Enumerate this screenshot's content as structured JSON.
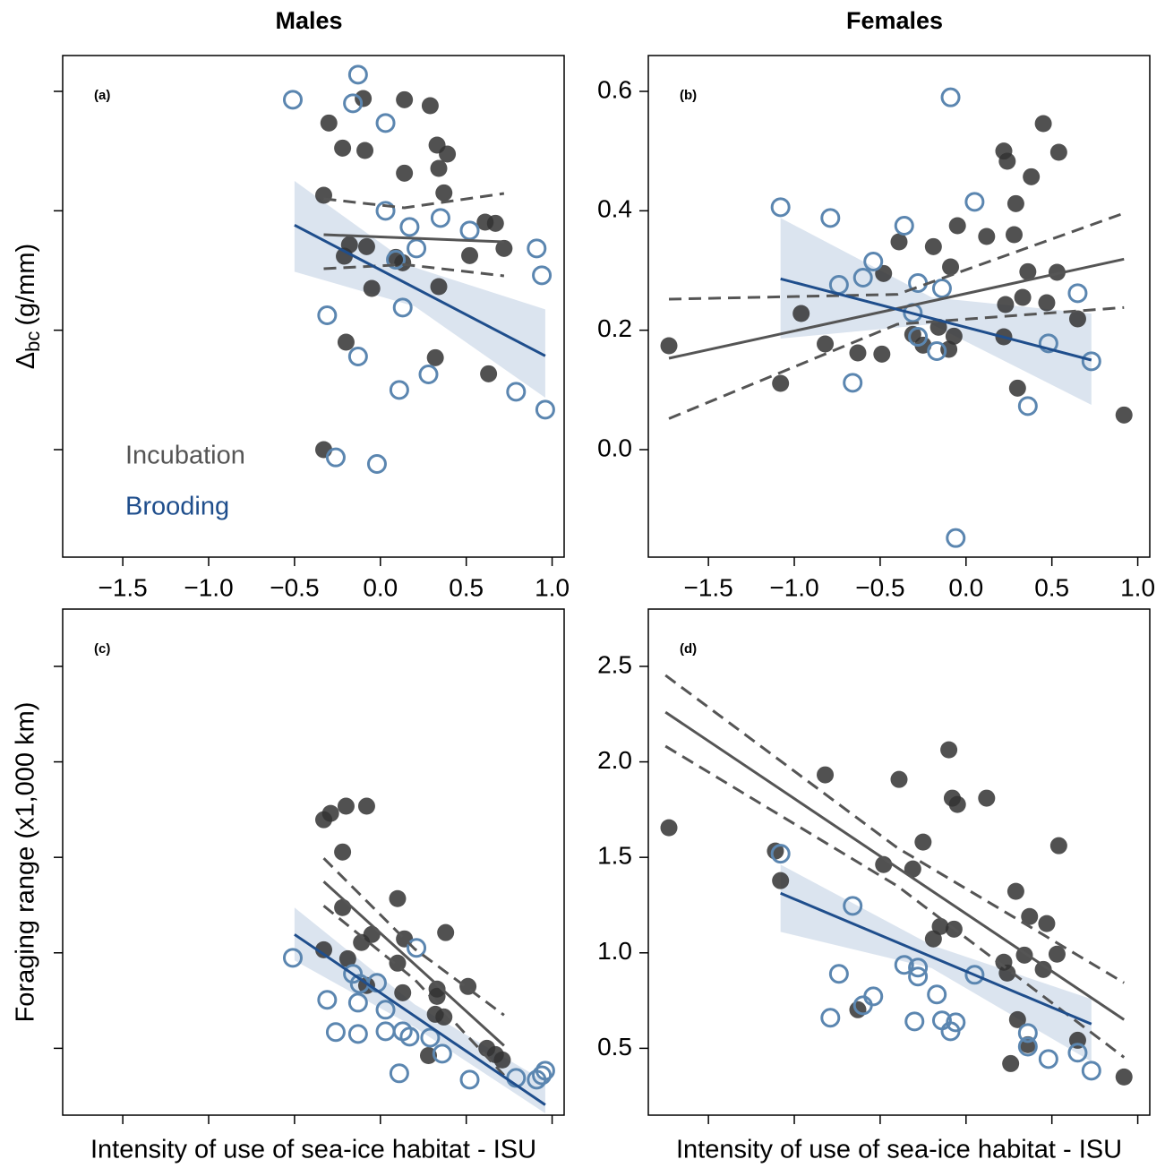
{
  "chart_data": [
    {
      "type": "scatter",
      "title": "Males",
      "panel_label": "(a)",
      "ylabel": {
        "symbol": "Δ",
        "subscript": "bc",
        "unit": "(g/mm)"
      },
      "xlim": [
        -1.85,
        1.07
      ],
      "ylim": [
        -0.18,
        0.66
      ],
      "xticks": [
        {
          "value": -1.5,
          "label": "−1.5"
        },
        {
          "value": -1,
          "label": "−1.0"
        },
        {
          "value": -0.5,
          "label": "−0.5"
        },
        {
          "value": 0,
          "label": "0.0"
        },
        0.5,
        {
          "value": 1,
          "label": "1.0"
        }
      ],
      "yticks": [
        0,
        0.2,
        0.4,
        0.6
      ],
      "xtick_labels": true,
      "ytick_labels": false,
      "legend": "lower left",
      "series": [
        {
          "name": "Incubation",
          "color": "#333333",
          "line_color": "#555555",
          "marker": "filled",
          "x": [
            -0.33,
            -0.3,
            -0.22,
            -0.1,
            -0.09,
            0.14,
            0.29,
            0.33,
            0.39,
            0.34,
            0.14,
            0.37,
            -0.18,
            -0.21,
            -0.08,
            0.09,
            0.13,
            -0.05,
            0.34,
            0.52,
            0.61,
            0.67,
            0.72,
            -0.2,
            0.32,
            0.63,
            -0.33
          ],
          "y": [
            0.426,
            0.547,
            0.505,
            0.588,
            0.501,
            0.586,
            0.576,
            0.51,
            0.495,
            0.471,
            0.463,
            0.43,
            0.343,
            0.324,
            0.34,
            0.322,
            0.313,
            0.27,
            0.273,
            0.325,
            0.381,
            0.379,
            0.337,
            0.18,
            0.154,
            0.127,
            0.0
          ],
          "fit": {
            "x": [
              -0.33,
              0.72
            ],
            "y": [
              0.36,
              0.348
            ]
          },
          "ci": {
            "style": "dashed",
            "x": [
              -0.33,
              0.14,
              0.72
            ],
            "upper": [
              0.42,
              0.405,
              0.429
            ],
            "lower": [
              0.303,
              0.31,
              0.291
            ]
          }
        },
        {
          "name": "Brooding",
          "color": "#5b86b0",
          "line_color": "#1f4e8c",
          "marker": "open",
          "x": [
            -0.51,
            -0.13,
            -0.16,
            0.03,
            0.03,
            0.17,
            0.21,
            0.35,
            0.52,
            0.91,
            0.94,
            0.09,
            0.13,
            -0.31,
            -0.13,
            0.11,
            0.28,
            0.79,
            0.96,
            -0.26,
            -0.02
          ],
          "y": [
            0.586,
            0.628,
            0.58,
            0.547,
            0.4,
            0.373,
            0.337,
            0.388,
            0.367,
            0.337,
            0.292,
            0.318,
            0.238,
            0.225,
            0.156,
            0.1,
            0.126,
            0.097,
            0.067,
            -0.013,
            -0.024
          ],
          "fit": {
            "x": [
              -0.5,
              0.96
            ],
            "y": [
              0.376,
              0.157
            ]
          },
          "ci": {
            "style": "band",
            "x": [
              -0.5,
              0.2,
              0.96
            ],
            "upper": [
              0.45,
              0.305,
              0.235
            ],
            "lower": [
              0.298,
              0.24,
              0.087
            ]
          }
        }
      ]
    },
    {
      "type": "scatter",
      "title": "Females",
      "panel_label": "(b)",
      "xlim": [
        -1.85,
        1.07
      ],
      "ylim": [
        -0.18,
        0.66
      ],
      "xticks": [
        {
          "value": -1.5,
          "label": "−1.5"
        },
        {
          "value": -1,
          "label": "−1.0"
        },
        {
          "value": -0.5,
          "label": "−0.5"
        },
        {
          "value": 0,
          "label": "0.0"
        },
        0.5,
        {
          "value": 1,
          "label": "1.0"
        }
      ],
      "yticks": [
        {
          "value": 0,
          "label": "0.0"
        },
        0.2,
        0.4,
        0.6
      ],
      "xtick_labels": true,
      "ytick_labels": true,
      "series": [
        {
          "color": "#333333",
          "line_color": "#555555",
          "marker": "filled",
          "x": [
            -1.73,
            -1.08,
            -0.96,
            -0.82,
            -0.63,
            -0.39,
            -0.48,
            -0.49,
            -0.31,
            -0.25,
            -0.19,
            -0.09,
            -0.16,
            -0.07,
            -0.1,
            -0.05,
            0.12,
            0.22,
            0.24,
            0.45,
            0.38,
            0.29,
            0.28,
            0.23,
            0.33,
            0.36,
            0.53,
            0.47,
            0.54,
            0.65,
            0.3,
            0.92,
            0.22
          ],
          "y": [
            0.174,
            0.111,
            0.228,
            0.177,
            0.162,
            0.348,
            0.295,
            0.16,
            0.193,
            0.175,
            0.34,
            0.306,
            0.205,
            0.19,
            0.168,
            0.375,
            0.357,
            0.5,
            0.483,
            0.546,
            0.457,
            0.412,
            0.36,
            0.243,
            0.255,
            0.298,
            0.297,
            0.246,
            0.498,
            0.219,
            0.103,
            0.058,
            0.189
          ],
          "fit": {
            "x": [
              -1.73,
              0.92
            ],
            "y": [
              0.153,
              0.319
            ]
          },
          "ci": {
            "style": "dashed",
            "x": [
              -1.73,
              -0.4,
              0.92
            ],
            "upper": [
              0.252,
              0.26,
              0.396
            ],
            "lower": [
              0.052,
              0.21,
              0.238
            ]
          }
        },
        {
          "color": "#5b86b0",
          "line_color": "#1f4e8c",
          "marker": "open",
          "x": [
            -1.08,
            -0.79,
            -0.36,
            -0.54,
            -0.6,
            -0.74,
            -0.28,
            -0.14,
            -0.31,
            -0.28,
            -0.17,
            -0.66,
            -0.09,
            0.05,
            0.65,
            0.48,
            0.73,
            0.36,
            -0.06
          ],
          "y": [
            0.406,
            0.388,
            0.375,
            0.315,
            0.288,
            0.276,
            0.279,
            0.27,
            0.229,
            0.189,
            0.165,
            0.112,
            0.59,
            0.415,
            0.262,
            0.178,
            0.148,
            0.073,
            -0.148
          ],
          "fit": {
            "x": [
              -1.08,
              0.73
            ],
            "y": [
              0.286,
              0.15
            ]
          },
          "ci": {
            "style": "band",
            "x": [
              -1.08,
              -0.2,
              0.73
            ],
            "upper": [
              0.388,
              0.255,
              0.228
            ],
            "lower": [
              0.186,
              0.21,
              0.075
            ]
          }
        }
      ]
    },
    {
      "type": "scatter",
      "panel_label": "(c)",
      "ylabel": {
        "text": "Foraging range (x1,000 km)"
      },
      "xlabel": "Intensity of use of sea-ice habitat - ISU",
      "xlim": [
        -1.85,
        1.07
      ],
      "ylim": [
        0.15,
        2.8
      ],
      "xticks": [
        -1.5,
        -1,
        -0.5,
        0,
        0.5,
        1
      ],
      "yticks": [
        0.5,
        1,
        1.5,
        2,
        2.5
      ],
      "xtick_labels": false,
      "ytick_labels": false,
      "series": [
        {
          "color": "#333333",
          "line_color": "#555555",
          "marker": "filled",
          "x": [
            -0.33,
            -0.29,
            -0.2,
            -0.08,
            -0.22,
            -0.22,
            -0.33,
            -0.19,
            -0.11,
            -0.05,
            0.1,
            0.14,
            0.1,
            0.13,
            -0.08,
            0.38,
            0.33,
            0.33,
            0.32,
            0.37,
            0.28,
            0.51,
            0.62,
            0.67,
            0.71
          ],
          "y": [
            1.697,
            1.73,
            1.768,
            1.768,
            1.528,
            1.237,
            1.016,
            0.969,
            1.054,
            1.096,
            1.284,
            1.073,
            0.946,
            0.791,
            0.829,
            1.106,
            0.81,
            0.772,
            0.678,
            0.664,
            0.462,
            0.824,
            0.5,
            0.467,
            0.439
          ],
          "fit": {
            "x": [
              -0.33,
              0.72
            ],
            "y": [
              1.373,
              0.514
            ]
          },
          "ci": {
            "style": "dashed",
            "x": [
              -0.33,
              0.2,
              0.72
            ],
            "upper": [
              1.495,
              1.02,
              0.674
            ],
            "lower": [
              1.246,
              0.86,
              0.359
            ]
          }
        },
        {
          "color": "#5b86b0",
          "line_color": "#1f4e8c",
          "marker": "open",
          "x": [
            -0.51,
            -0.31,
            -0.16,
            -0.12,
            -0.02,
            -0.13,
            0.03,
            -0.26,
            -0.13,
            0.03,
            0.13,
            0.17,
            0.29,
            0.21,
            0.11,
            0.36,
            0.52,
            0.79,
            0.91,
            0.94,
            0.96
          ],
          "y": [
            0.974,
            0.754,
            0.89,
            0.838,
            0.843,
            0.739,
            0.702,
            0.585,
            0.575,
            0.589,
            0.589,
            0.561,
            0.556,
            1.026,
            0.369,
            0.472,
            0.336,
            0.345,
            0.336,
            0.359,
            0.383
          ],
          "fit": {
            "x": [
              -0.5,
              0.96
            ],
            "y": [
              1.096,
              0.204
            ]
          },
          "ci": {
            "style": "band",
            "x": [
              -0.5,
              0.2,
              0.96
            ],
            "upper": [
              1.237,
              0.73,
              0.326
            ],
            "lower": [
              0.96,
              0.61,
              0.16
            ]
          }
        }
      ]
    },
    {
      "type": "scatter",
      "panel_label": "(d)",
      "xlabel": "Intensity of use of sea-ice habitat - ISU",
      "xlim": [
        -1.85,
        1.07
      ],
      "ylim": [
        0.15,
        2.8
      ],
      "xticks": [
        -1.5,
        -1,
        -0.5,
        0,
        0.5,
        1
      ],
      "yticks": [
        0.5,
        {
          "value": 1,
          "label": "1.0"
        },
        1.5,
        {
          "value": 2,
          "label": "2.0"
        },
        2.5
      ],
      "xtick_labels": false,
      "ytick_labels": true,
      "series": [
        {
          "color": "#333333",
          "line_color": "#555555",
          "marker": "filled",
          "x": [
            -1.73,
            -1.11,
            -1.08,
            -0.82,
            -0.39,
            -0.48,
            -0.31,
            -0.25,
            -0.63,
            -0.19,
            -0.15,
            -0.07,
            -0.1,
            -0.08,
            -0.05,
            0.12,
            0.22,
            0.24,
            0.29,
            0.37,
            0.47,
            0.53,
            0.45,
            0.34,
            0.54,
            0.3,
            0.36,
            0.26,
            0.65,
            0.92
          ],
          "y": [
            1.655,
            1.533,
            1.378,
            1.932,
            1.908,
            1.462,
            1.439,
            1.58,
            0.702,
            1.073,
            1.138,
            1.124,
            2.063,
            1.81,
            1.777,
            1.81,
            0.951,
            0.894,
            1.322,
            1.19,
            1.153,
            0.993,
            0.913,
            0.988,
            1.561,
            0.65,
            0.519,
            0.42,
            0.542,
            0.35
          ],
          "fit": {
            "x": [
              -1.75,
              0.92
            ],
            "y": [
              2.26,
              0.65
            ]
          },
          "ci": {
            "style": "dashed",
            "x": [
              -1.75,
              -0.4,
              0.92
            ],
            "upper": [
              2.453,
              1.55,
              0.843
            ],
            "lower": [
              2.082,
              1.35,
              0.453
            ]
          }
        },
        {
          "color": "#5b86b0",
          "line_color": "#1f4e8c",
          "marker": "open",
          "x": [
            -1.08,
            -0.66,
            -0.74,
            -0.79,
            -0.6,
            -0.54,
            -0.36,
            -0.28,
            -0.28,
            -0.17,
            -0.3,
            -0.14,
            -0.06,
            -0.09,
            0.05,
            0.36,
            0.36,
            0.48,
            0.65,
            0.73
          ],
          "y": [
            1.519,
            1.246,
            0.89,
            0.66,
            0.725,
            0.772,
            0.937,
            0.923,
            0.876,
            0.782,
            0.641,
            0.646,
            0.636,
            0.589,
            0.885,
            0.58,
            0.509,
            0.444,
            0.477,
            0.383
          ],
          "fit": {
            "x": [
              -1.08,
              0.73
            ],
            "y": [
              1.312,
              0.627
            ]
          },
          "ci": {
            "style": "band",
            "x": [
              -1.08,
              -0.2,
              0.73
            ],
            "upper": [
              1.462,
              1.04,
              0.758
            ],
            "lower": [
              1.11,
              0.92,
              0.43
            ]
          }
        }
      ]
    }
  ]
}
